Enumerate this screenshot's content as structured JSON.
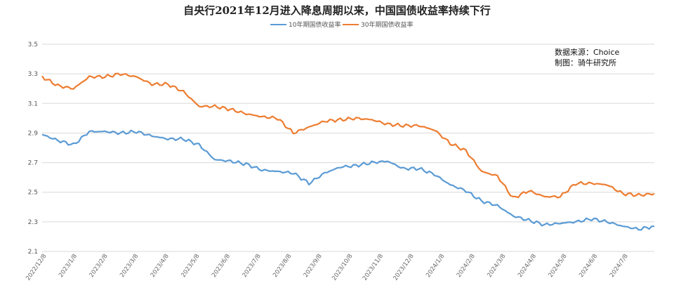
{
  "chart_data": {
    "type": "line",
    "title": "自央行2021年12月进入降息周期以来，中国国债收益率持续下行",
    "xlabel": "",
    "ylabel": "",
    "ylim": [
      2.1,
      3.5
    ],
    "yticks": [
      "2.1",
      "2.3",
      "2.5",
      "2.7",
      "2.9",
      "3.1",
      "3.3",
      "3.5"
    ],
    "xticks": [
      "2022/12/8",
      "2023/1/8",
      "2023/2/8",
      "2023/3/8",
      "2023/4/8",
      "2023/5/8",
      "2023/6/8",
      "2023/7/8",
      "2023/8/8",
      "2023/9/8",
      "2023/10/8",
      "2023/11/8",
      "2023/12/8",
      "2024/1/8",
      "2024/2/8",
      "2024/3/8",
      "2024/4/8",
      "2024/5/8",
      "2024/6/8",
      "2024/7/8"
    ],
    "grid": true,
    "legend_position": "top-center",
    "annotations": [
      "数据来源：Choice",
      "制图：骑牛研究所"
    ],
    "x": [
      "2022/12/8",
      "2022/12/22",
      "2023/1/8",
      "2023/1/22",
      "2023/2/8",
      "2023/2/22",
      "2023/3/8",
      "2023/3/22",
      "2023/4/8",
      "2023/4/22",
      "2023/5/8",
      "2023/5/22",
      "2023/6/8",
      "2023/6/22",
      "2023/7/8",
      "2023/7/22",
      "2023/8/8",
      "2023/8/22",
      "2023/9/8",
      "2023/9/22",
      "2023/10/8",
      "2023/10/22",
      "2023/11/8",
      "2023/11/22",
      "2023/12/8",
      "2023/12/22",
      "2024/1/8",
      "2024/1/22",
      "2024/2/8",
      "2024/2/22",
      "2024/3/8",
      "2024/3/22",
      "2024/4/8",
      "2024/4/22",
      "2024/5/8",
      "2024/5/22",
      "2024/6/8",
      "2024/6/22",
      "2024/7/8",
      "2024/7/22"
    ],
    "series": [
      {
        "name": "10年期国债收益率",
        "color": "#5b9bd5",
        "values": [
          2.89,
          2.85,
          2.82,
          2.91,
          2.91,
          2.9,
          2.91,
          2.88,
          2.86,
          2.86,
          2.82,
          2.72,
          2.71,
          2.69,
          2.65,
          2.64,
          2.63,
          2.56,
          2.63,
          2.67,
          2.68,
          2.7,
          2.71,
          2.66,
          2.66,
          2.62,
          2.55,
          2.51,
          2.44,
          2.41,
          2.34,
          2.31,
          2.28,
          2.29,
          2.3,
          2.32,
          2.3,
          2.27,
          2.25,
          2.27
        ]
      },
      {
        "name": "30年期国债收益率",
        "color": "#ed7d31",
        "values": [
          3.28,
          3.22,
          3.2,
          3.28,
          3.28,
          3.3,
          3.28,
          3.23,
          3.23,
          3.18,
          3.08,
          3.08,
          3.06,
          3.03,
          3.01,
          3.0,
          2.9,
          2.94,
          2.98,
          2.99,
          3.0,
          2.99,
          2.96,
          2.95,
          2.95,
          2.92,
          2.83,
          2.78,
          2.64,
          2.61,
          2.46,
          2.51,
          2.47,
          2.47,
          2.56,
          2.56,
          2.55,
          2.49,
          2.48,
          2.49
        ]
      }
    ]
  }
}
